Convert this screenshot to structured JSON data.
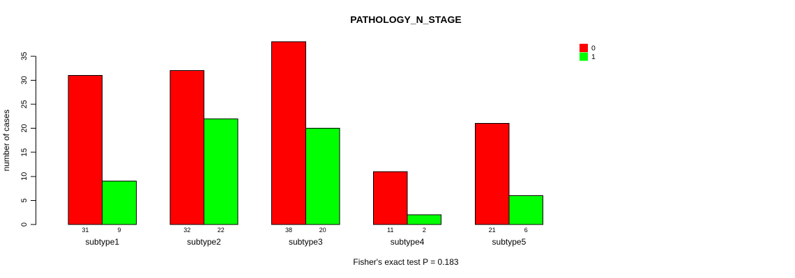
{
  "chart_data": {
    "type": "bar",
    "title": "PATHOLOGY_N_STAGE",
    "ylabel": "number of cases",
    "xlabel": "",
    "categories": [
      "subtype1",
      "subtype2",
      "subtype3",
      "subtype4",
      "subtype5"
    ],
    "series": [
      {
        "name": "0",
        "color": "#FF0000",
        "values": [
          31,
          32,
          38,
          11,
          21
        ]
      },
      {
        "name": "1",
        "color": "#00FF00",
        "values": [
          9,
          22,
          20,
          2,
          6
        ]
      }
    ],
    "yticks": [
      0,
      5,
      10,
      15,
      20,
      25,
      30,
      35
    ],
    "ylim": [
      0,
      35
    ],
    "grid": false,
    "legend_position": "top-right",
    "bar_value_labels": true,
    "annotation": "Fisher's exact test P = 0.183"
  }
}
